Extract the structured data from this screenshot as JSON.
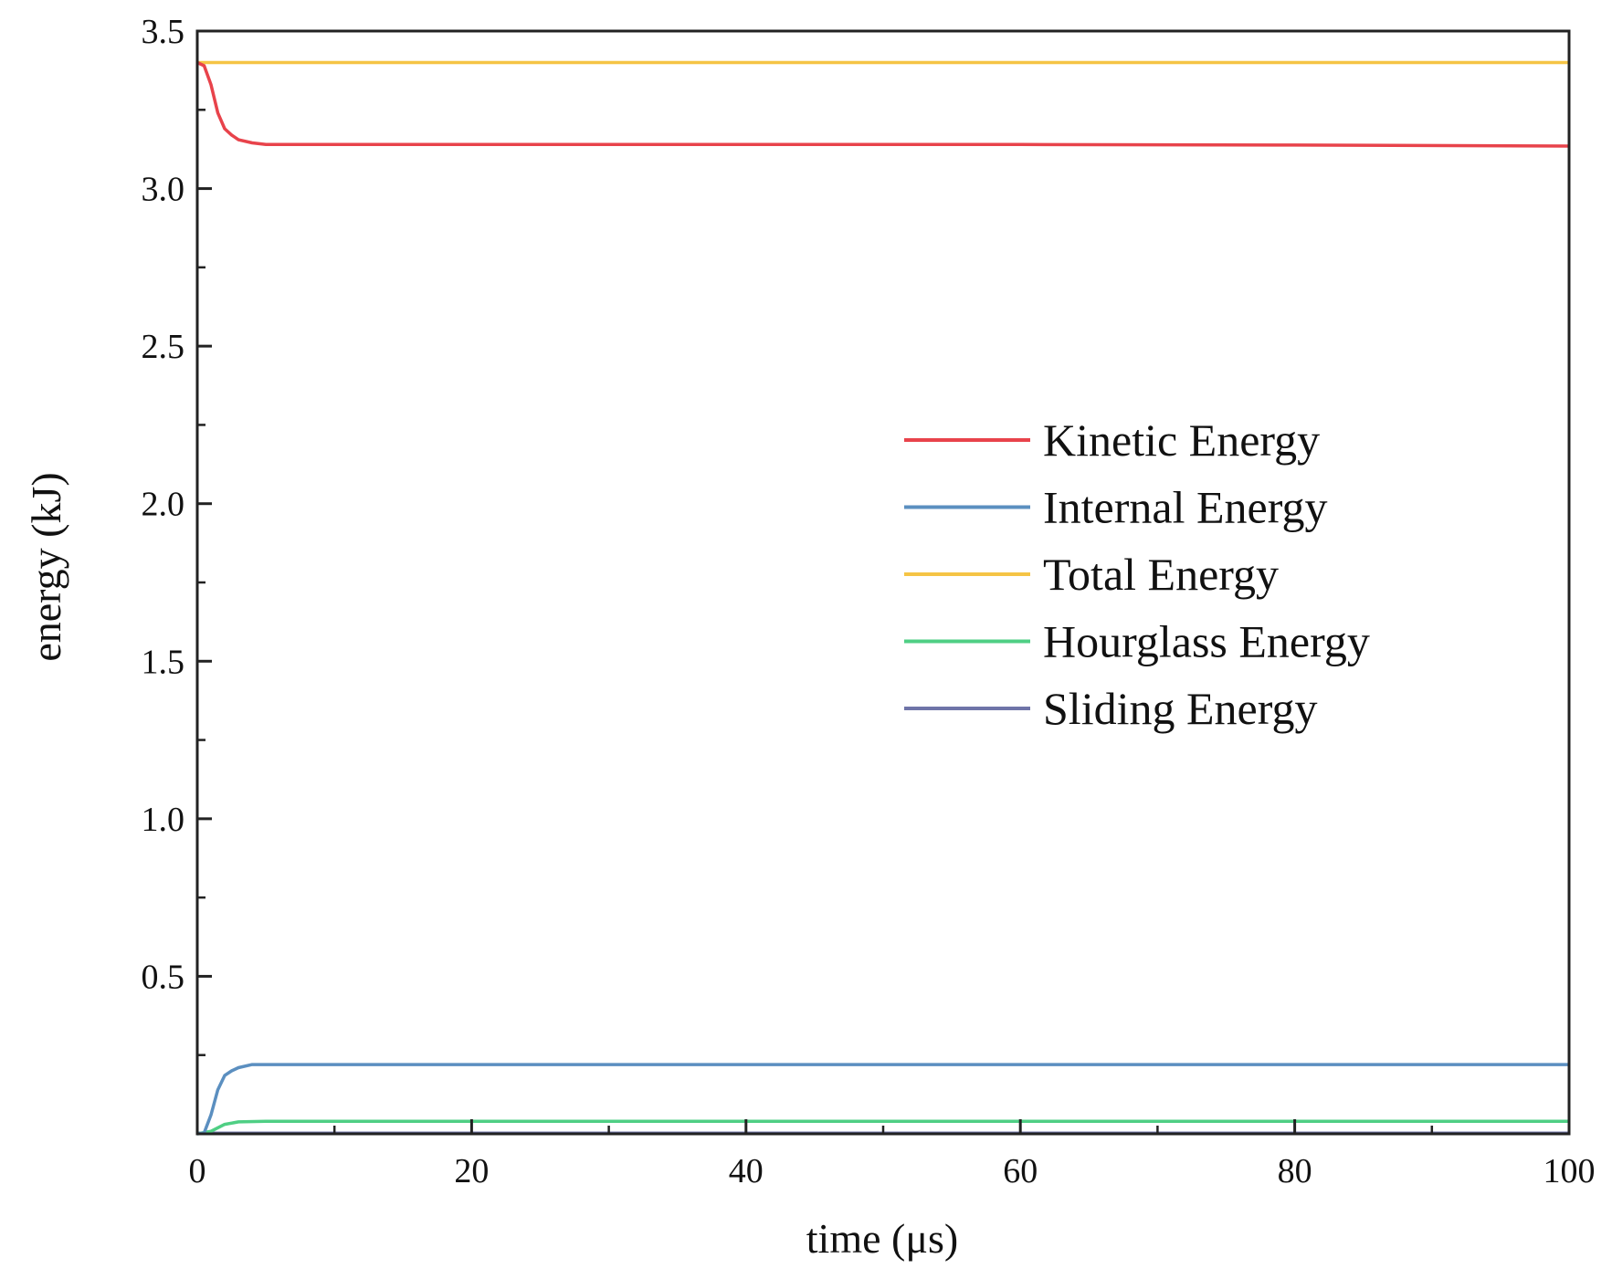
{
  "chart_data": {
    "type": "line",
    "title": "",
    "xlabel": "time (μs)",
    "ylabel": "energy (kJ)",
    "xlim": [
      0,
      100
    ],
    "ylim": [
      0,
      3.5
    ],
    "xticks": [
      0,
      20,
      40,
      60,
      80,
      100
    ],
    "xtick_labels": [
      "0",
      "20",
      "40",
      "60",
      "80",
      "100"
    ],
    "xminor": [
      10,
      30,
      50,
      70,
      90
    ],
    "yticks": [
      0.5,
      1.0,
      1.5,
      2.0,
      2.5,
      3.0,
      3.5
    ],
    "ytick_labels": [
      "0.5",
      "1.0",
      "1.5",
      "2.0",
      "2.5",
      "3.0",
      "3.5"
    ],
    "yminor": [
      0.25,
      0.75,
      1.25,
      1.75,
      2.25,
      2.75,
      3.25
    ],
    "grid": false,
    "legend_position": "right-center",
    "series": [
      {
        "name": "Kinetic Energy",
        "color": "#e8434b",
        "x": [
          0,
          0.5,
          1,
          1.5,
          2,
          2.5,
          3,
          4,
          5,
          10,
          20,
          40,
          60,
          80,
          100
        ],
        "y": [
          3.4,
          3.39,
          3.33,
          3.24,
          3.19,
          3.17,
          3.155,
          3.145,
          3.14,
          3.14,
          3.14,
          3.14,
          3.14,
          3.138,
          3.135
        ]
      },
      {
        "name": "Internal Energy",
        "color": "#5b8fc0",
        "x": [
          0,
          0.5,
          1,
          1.5,
          2,
          2.5,
          3,
          4,
          5,
          10,
          20,
          40,
          60,
          80,
          100
        ],
        "y": [
          0,
          0.003,
          0.06,
          0.14,
          0.185,
          0.2,
          0.21,
          0.22,
          0.22,
          0.22,
          0.22,
          0.22,
          0.22,
          0.22,
          0.22
        ]
      },
      {
        "name": "Total Energy",
        "color": "#f5c445",
        "x": [
          0,
          20,
          40,
          60,
          80,
          100
        ],
        "y": [
          3.4,
          3.4,
          3.4,
          3.4,
          3.4,
          3.4
        ]
      },
      {
        "name": "Hourglass Energy",
        "color": "#4fcf84",
        "x": [
          0,
          1,
          2,
          3,
          5,
          20,
          40,
          60,
          80,
          100
        ],
        "y": [
          0,
          0.008,
          0.03,
          0.038,
          0.04,
          0.04,
          0.04,
          0.04,
          0.04,
          0.04
        ]
      },
      {
        "name": "Sliding Energy",
        "color": "#6f74a8",
        "x": [
          0,
          20,
          40,
          60,
          80,
          100
        ],
        "y": [
          0.002,
          0.002,
          0.002,
          0.002,
          0.002,
          0.002
        ]
      }
    ]
  }
}
